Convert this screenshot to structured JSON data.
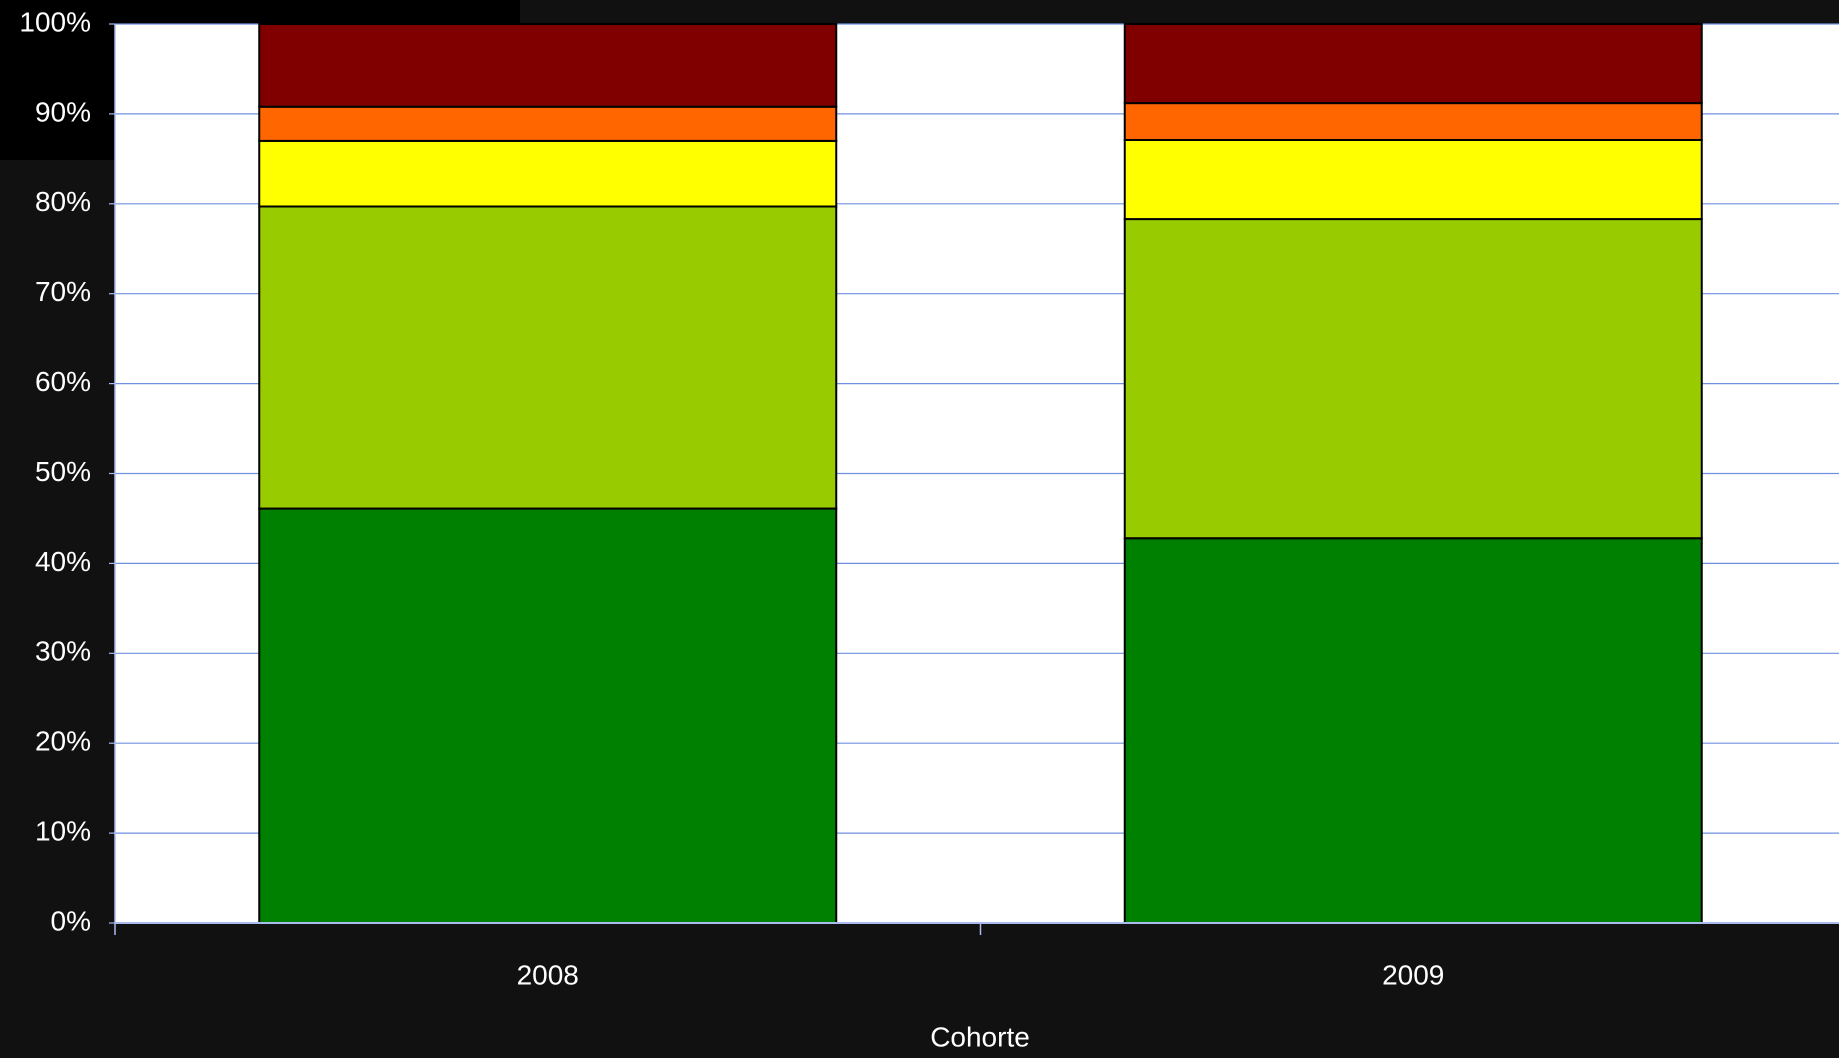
{
  "chart_data": {
    "type": "stacked_bar",
    "x_label": "Cohorte",
    "categories": [
      "2008",
      "2009"
    ],
    "series": [
      {
        "color": "#008000",
        "values": [
          46.1,
          42.8
        ]
      },
      {
        "color": "#99cc00",
        "values": [
          33.6,
          35.5
        ]
      },
      {
        "color": "#ffff00",
        "values": [
          7.3,
          8.8
        ]
      },
      {
        "color": "#ff6600",
        "values": [
          3.8,
          4.1
        ]
      },
      {
        "color": "#800000",
        "values": [
          9.2,
          8.8
        ]
      }
    ],
    "ylim": [
      0,
      100
    ],
    "yticks": [
      {
        "value": 0,
        "label": "0%"
      },
      {
        "value": 10,
        "label": "10%"
      },
      {
        "value": 20,
        "label": "20%"
      },
      {
        "value": 30,
        "label": "30%"
      },
      {
        "value": 40,
        "label": "40%"
      },
      {
        "value": 50,
        "label": "50%"
      },
      {
        "value": 60,
        "label": "60%"
      },
      {
        "value": 70,
        "label": "70%"
      },
      {
        "value": 80,
        "label": "80%"
      },
      {
        "value": 90,
        "label": "90%"
      },
      {
        "value": 100,
        "label": "100%"
      }
    ],
    "grid": true
  }
}
